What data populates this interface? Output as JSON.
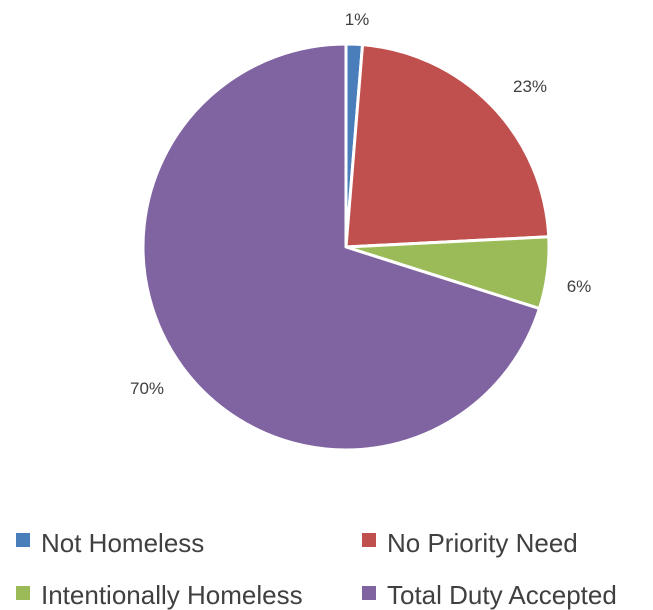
{
  "chart_data": {
    "type": "pie",
    "categories": [
      "Not Homeless",
      "No Priority Need",
      "Intentionally Homeless",
      "Total Duty Accepted"
    ],
    "values": [
      1.3,
      22.9,
      5.7,
      70.1
    ],
    "data_labels": [
      "1%",
      "23%",
      "6%",
      "70%"
    ],
    "colors": [
      "#4a7ebb",
      "#c0504d",
      "#9bbb59",
      "#8064a2"
    ],
    "start_angle_deg": 0,
    "direction": "clockwise",
    "legend_position": "bottom"
  }
}
